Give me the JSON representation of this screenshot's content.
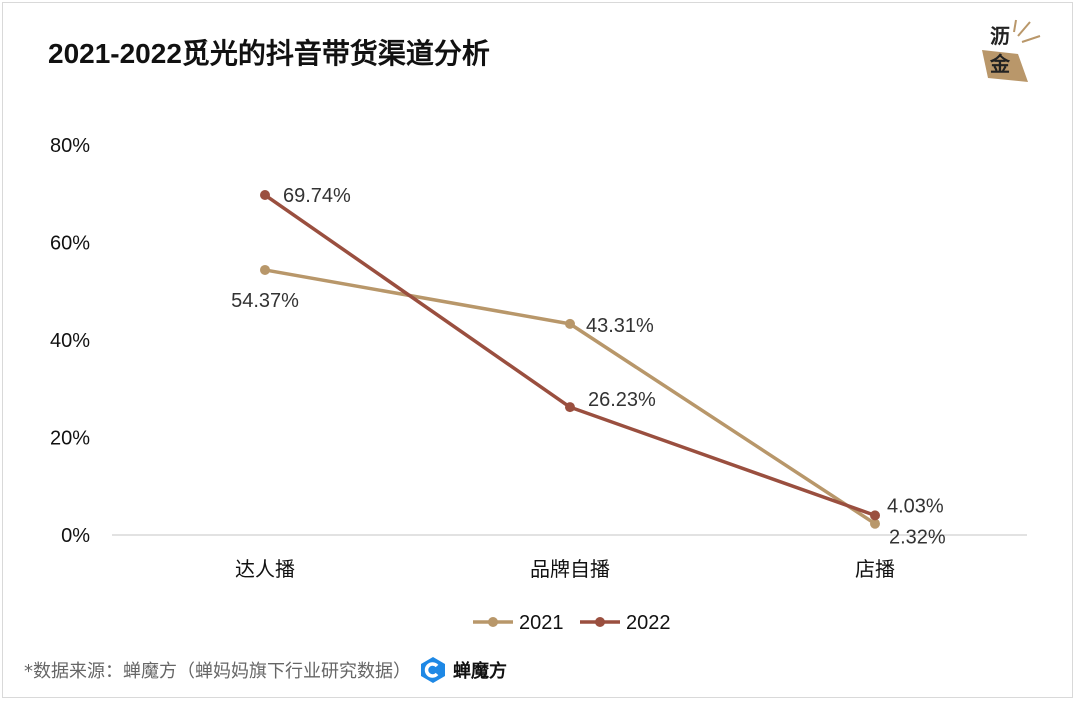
{
  "title": "2021-2022觅光的抖音带货渠道分析",
  "logo": {
    "line1": "沥",
    "line2": "金"
  },
  "chart_data": {
    "type": "line",
    "title": "2021-2022觅光的抖音带货渠道分析",
    "categories": [
      "达人播",
      "品牌自播",
      "店播"
    ],
    "ylim": [
      0,
      80
    ],
    "yticks": [
      0,
      20,
      40,
      60,
      80
    ],
    "ytick_labels": [
      "0%",
      "20%",
      "40%",
      "60%",
      "80%"
    ],
    "series": [
      {
        "name": "2021",
        "color": "#b8976a",
        "values": [
          54.37,
          43.31,
          2.32
        ],
        "labels": [
          "54.37%",
          "43.31%",
          "2.32%"
        ]
      },
      {
        "name": "2022",
        "color": "#9a4f3f",
        "values": [
          69.74,
          26.23,
          4.03
        ],
        "labels": [
          "69.74%",
          "26.23%",
          "4.03%"
        ]
      }
    ],
    "legend_position": "bottom-center"
  },
  "footer": {
    "source": "*数据来源：蝉魔方（蝉妈妈旗下行业研究数据）",
    "brand": "蝉魔方"
  },
  "colors": {
    "c2021": "#b8976a",
    "c2022": "#9a4f3f",
    "brand_blue": "#1e88e5"
  }
}
